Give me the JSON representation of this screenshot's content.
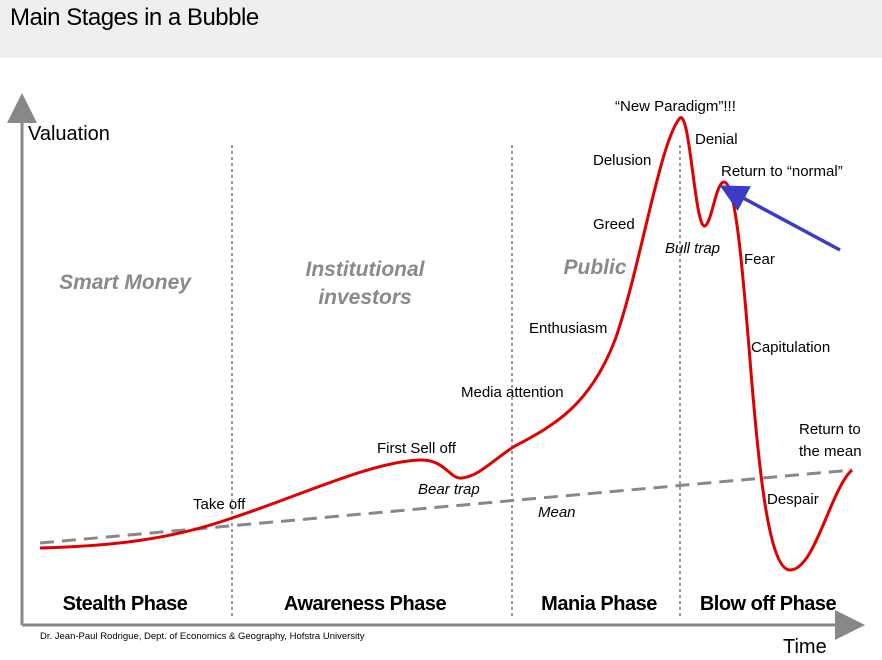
{
  "header": {
    "title": "Main Stages in a Bubble"
  },
  "axes": {
    "y_label": "Valuation",
    "x_label": "Time"
  },
  "groups": [
    "Smart Money",
    "Institutional investors",
    "Public"
  ],
  "phases": [
    "Stealth Phase",
    "Awareness Phase",
    "Mania Phase",
    "Blow off Phase"
  ],
  "stages": [
    "Take off",
    "First Sell off",
    "Bear trap",
    "Media attention",
    "Enthusiasm",
    "Greed",
    "Delusion",
    "“New Paradigm”!!!",
    "Denial",
    "Return to “normal”",
    "Bull trap",
    "Fear",
    "Capitulation",
    "Return to the mean",
    "Despair"
  ],
  "mean_label": "Mean",
  "credit": "Dr. Jean-Paul Rodrigue, Dept. of Economics & Geography, Hofstra University"
}
